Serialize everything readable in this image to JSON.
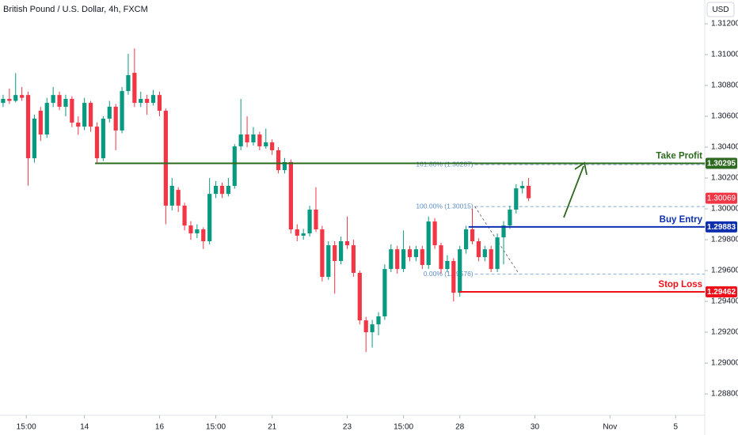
{
  "chart_data": {
    "type": "candlestick",
    "title": "British Pound / U.S. Dollar, 4h, FXCM",
    "currency": "USD",
    "up_color": "#089981",
    "down_color": "#f23645",
    "open": [
      1.30687,
      1.30713,
      1.307,
      1.30738,
      1.30738,
      1.30328,
      1.30636,
      1.30482,
      1.30687,
      1.30738,
      1.30662,
      1.30713,
      1.30559,
      1.30533,
      1.30687,
      1.30533,
      1.30328,
      1.30585,
      1.30662,
      1.30508,
      1.30764,
      1.30882,
      1.30687,
      1.30713,
      1.30687,
      1.30738,
      1.30636,
      1.30021,
      1.30123,
      1.30021,
      1.29892,
      1.29841,
      1.29867,
      1.2979,
      1.30097,
      1.30149,
      1.30097,
      1.30149,
      1.30405,
      1.30482,
      1.30431,
      1.30482,
      1.30405,
      1.30431,
      1.3038,
      1.30251,
      1.30303,
      1.29867,
      1.29826,
      1.29841,
      1.29995,
      1.29867,
      1.29559,
      1.29764,
      1.29662,
      1.2979,
      1.29764,
      1.29585,
      1.29277,
      1.292,
      1.29251,
      1.29303,
      1.2961,
      1.29738,
      1.2961,
      1.29738,
      1.29687,
      1.29738,
      1.29636,
      1.29918,
      1.29764,
      1.2961,
      1.29662,
      1.29456,
      1.29738,
      1.29867,
      1.2979,
      1.29687,
      1.29738,
      1.2961,
      1.29815,
      1.29892,
      1.29995,
      1.30133,
      1.30149
    ],
    "high": [
      1.3074,
      1.3078,
      1.3088,
      1.3079,
      1.3076,
      1.3061,
      1.3066,
      1.3072,
      1.3079,
      1.3076,
      1.3074,
      1.3073,
      1.306,
      1.3072,
      1.307,
      1.3056,
      1.306,
      1.307,
      1.3068,
      1.3079,
      1.31005,
      1.3104,
      1.3076,
      1.3074,
      1.3077,
      1.3076,
      1.3065,
      1.302,
      1.3014,
      1.3004,
      1.2992,
      1.299,
      1.2988,
      1.302,
      1.3018,
      1.3017,
      1.302,
      1.3042,
      1.30713,
      1.306,
      1.3053,
      1.305,
      1.3052,
      1.3045,
      1.304,
      1.3033,
      1.3032,
      1.299,
      1.2987,
      1.3002,
      1.3014,
      1.2989,
      1.2979,
      1.2979,
      1.2982,
      1.2995,
      1.298,
      1.296,
      1.293,
      1.2928,
      1.2933,
      1.2964,
      1.2977,
      1.2976,
      1.2986,
      1.2976,
      1.2976,
      1.2976,
      1.2995,
      1.2994,
      1.2978,
      1.297,
      1.2968,
      1.2976,
      1.2989,
      1.3,
      1.2981,
      1.2976,
      1.2976,
      1.2984,
      1.2992,
      1.3002,
      1.3016,
      1.3018,
      1.302
    ],
    "low": [
      1.3066,
      1.3068,
      1.3069,
      1.307,
      1.3015,
      1.303,
      1.3044,
      1.3046,
      1.3066,
      1.3064,
      1.306,
      1.3053,
      1.3048,
      1.3051,
      1.305,
      1.3029,
      1.3031,
      1.3056,
      1.3038,
      1.3049,
      1.3074,
      1.3066,
      1.3066,
      1.3061,
      1.3067,
      1.306,
      1.299,
      1.2999,
      1.2998,
      1.2986,
      1.298,
      1.2981,
      1.2974,
      1.2977,
      1.3007,
      1.3007,
      1.3008,
      1.3013,
      1.3038,
      1.304,
      1.3041,
      1.3038,
      1.3039,
      1.3035,
      1.3023,
      1.3023,
      1.2984,
      1.2979,
      1.298,
      1.2982,
      1.2985,
      1.2953,
      1.2954,
      1.2945,
      1.2964,
      1.2974,
      1.2956,
      1.2925,
      1.29072,
      1.291,
      1.2918,
      1.2928,
      1.2959,
      1.2958,
      1.2959,
      1.2966,
      1.2966,
      1.2961,
      1.2961,
      1.2974,
      1.2958,
      1.2959,
      1.294,
      1.2943,
      1.2971,
      1.2977,
      1.2966,
      1.2966,
      1.2959,
      1.2959,
      1.2964,
      1.2987,
      1.2997,
      1.301,
      1.3005
    ],
    "close": [
      1.30713,
      1.307,
      1.30738,
      1.3072,
      1.30328,
      1.30585,
      1.30482,
      1.30687,
      1.30738,
      1.30662,
      1.30713,
      1.30559,
      1.30533,
      1.30687,
      1.30533,
      1.30328,
      1.30585,
      1.30662,
      1.30508,
      1.30764,
      1.30867,
      1.30687,
      1.30713,
      1.30687,
      1.30738,
      1.30636,
      1.30021,
      1.30149,
      1.30021,
      1.29892,
      1.29841,
      1.29867,
      1.2979,
      1.30097,
      1.30149,
      1.30097,
      1.30149,
      1.30405,
      1.30482,
      1.30431,
      1.30482,
      1.30405,
      1.30431,
      1.3038,
      1.30251,
      1.30303,
      1.29867,
      1.29826,
      1.29841,
      1.29995,
      1.29867,
      1.29559,
      1.29764,
      1.29662,
      1.2979,
      1.29764,
      1.29585,
      1.29277,
      1.292,
      1.29251,
      1.29303,
      1.2961,
      1.29738,
      1.2961,
      1.29738,
      1.29687,
      1.29738,
      1.29636,
      1.29918,
      1.29764,
      1.2961,
      1.29662,
      1.29456,
      1.29738,
      1.29867,
      1.2979,
      1.29687,
      1.29738,
      1.2961,
      1.29815,
      1.29892,
      1.29995,
      1.30133,
      1.30149,
      1.30069
    ],
    "xlim": [
      -0.5,
      112.15
    ],
    "xticks": [
      {
        "value": 3.7,
        "label": "15:00"
      },
      {
        "value": 13,
        "label": "14"
      },
      {
        "value": 25,
        "label": "16"
      },
      {
        "value": 34,
        "label": "15:00"
      },
      {
        "value": 43,
        "label": "21"
      },
      {
        "value": 55,
        "label": "23"
      },
      {
        "value": 64,
        "label": "15:00"
      },
      {
        "value": 73,
        "label": "28"
      },
      {
        "value": 85,
        "label": "30"
      },
      {
        "value": 97,
        "label": "Nov"
      },
      {
        "value": 107.5,
        "label": "5"
      }
    ],
    "ylim": [
      1.28662,
      1.31354
    ],
    "yticks": [
      {
        "value": 1.312,
        "label": "1.31200"
      },
      {
        "value": 1.31,
        "label": "1.31000"
      },
      {
        "value": 1.308,
        "label": "1.30800"
      },
      {
        "value": 1.306,
        "label": "1.30600"
      },
      {
        "value": 1.304,
        "label": "1.30400"
      },
      {
        "value": 1.302,
        "label": "1.30200"
      },
      {
        "value": 1.3,
        "label": "1.30000"
      },
      {
        "value": 1.298,
        "label": "1.29800"
      },
      {
        "value": 1.296,
        "label": "1.29600"
      },
      {
        "value": 1.294,
        "label": "1.29400"
      },
      {
        "value": 1.292,
        "label": "1.29200"
      },
      {
        "value": 1.29,
        "label": "1.29000"
      },
      {
        "value": 1.288,
        "label": "1.28800"
      }
    ],
    "levels": [
      {
        "name": "Take Profit",
        "value": 1.30295,
        "color": "#2d6a1f",
        "x_start": 14.7
      },
      {
        "name": "Buy Entry",
        "value": 1.29883,
        "color": "#0c2fb0",
        "x_start": 74.4
      },
      {
        "name": "Stop Loss",
        "value": 1.29462,
        "color": "#f0101a",
        "x_start": 72.9
      }
    ],
    "fib": {
      "color": "#5b8fc7",
      "x_start": 75.4,
      "x_end": 82.5,
      "levels": [
        {
          "label": "161.80% (1.30287)",
          "value": 1.30287
        },
        {
          "label": "100.00% (1.30015)",
          "value": 1.30015
        },
        {
          "label": "0.00% (1.29576)",
          "value": 1.29576
        }
      ]
    }
  }
}
